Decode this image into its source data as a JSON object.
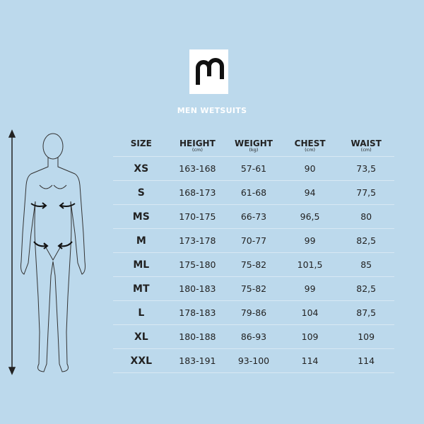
{
  "brand": {
    "logo_text": "m"
  },
  "title": "MEN WETSUITS",
  "table": {
    "headers": [
      {
        "label": "SIZE",
        "unit": ""
      },
      {
        "label": "HEIGHT",
        "unit": "(cm)"
      },
      {
        "label": "WEIGHT",
        "unit": "(kg)"
      },
      {
        "label": "CHEST",
        "unit": "(cm)"
      },
      {
        "label": "WAIST",
        "unit": "(cm)"
      }
    ],
    "rows": [
      [
        "XS",
        "163-168",
        "57-61",
        "90",
        "73,5"
      ],
      [
        "S",
        "168-173",
        "61-68",
        "94",
        "77,5"
      ],
      [
        "MS",
        "170-175",
        "66-73",
        "96,5",
        "80"
      ],
      [
        "M",
        "173-178",
        "70-77",
        "99",
        "82,5"
      ],
      [
        "ML",
        "175-180",
        "75-82",
        "101,5",
        "85"
      ],
      [
        "MT",
        "180-183",
        "75-82",
        "99",
        "82,5"
      ],
      [
        "L",
        "178-183",
        "79-86",
        "104",
        "87,5"
      ],
      [
        "XL",
        "180-188",
        "86-93",
        "109",
        "109"
      ],
      [
        "XXL",
        "183-191",
        "93-100",
        "114",
        "114"
      ]
    ]
  },
  "colors": {
    "background": "#bcd9ec",
    "title": "#ffffff",
    "line": "#d8e8f3"
  }
}
